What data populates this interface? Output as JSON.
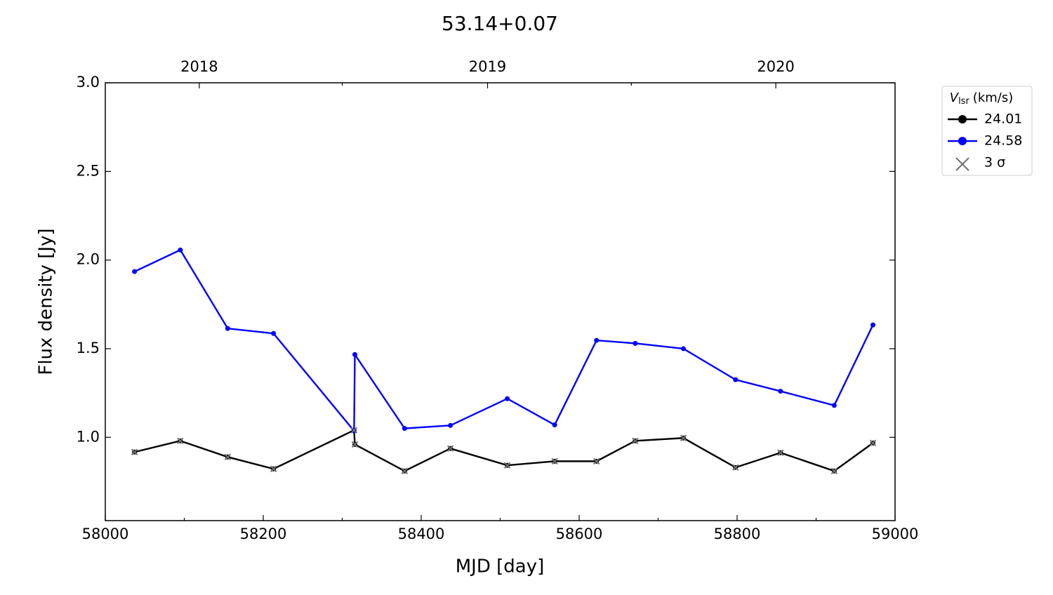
{
  "chart_data": {
    "type": "line",
    "title": "53.14+0.07",
    "xlabel": "MJD [day]",
    "ylabel": "Flux density [Jy]",
    "legend_title": {
      "symbol": "V",
      "subscript": "lsr",
      "unit": "(km/s)"
    },
    "legend_position": "outside upper right",
    "x": [
      58037,
      58095,
      58155,
      58213,
      58315,
      58316,
      58379,
      58437,
      58509,
      58569,
      58622,
      58671,
      58732,
      58798,
      58855,
      58923,
      58972
    ],
    "series": [
      {
        "name": "24.01",
        "color": "#000000",
        "marker": "circle",
        "line": true,
        "values": [
          0.917,
          0.98,
          0.889,
          0.822,
          1.04,
          0.96,
          0.81,
          0.937,
          0.842,
          0.865,
          0.865,
          0.98,
          0.996,
          0.83,
          0.913,
          0.81,
          0.968
        ]
      },
      {
        "name": "24.58",
        "color": "#0000ff",
        "marker": "circle",
        "line": true,
        "values": [
          1.935,
          2.057,
          1.614,
          1.586,
          1.036,
          1.467,
          1.05,
          1.067,
          1.218,
          1.07,
          1.547,
          1.53,
          1.5,
          1.325,
          1.26,
          1.18,
          1.634
        ]
      },
      {
        "name": "3 σ",
        "color": "#707070",
        "marker": "x",
        "line": false,
        "values": [
          0.917,
          0.98,
          0.889,
          0.822,
          1.04,
          0.96,
          0.81,
          0.937,
          0.842,
          0.865,
          0.865,
          0.98,
          0.996,
          0.83,
          0.913,
          0.81,
          0.968
        ]
      }
    ],
    "xlim": [
      58000,
      59000
    ],
    "xticks": [
      58000,
      58200,
      58400,
      58600,
      58800,
      59000
    ],
    "xminorticks": [
      58100,
      58300,
      58500,
      58700,
      58900
    ],
    "ylim": [
      0.53,
      3.0
    ],
    "yticks": [
      {
        "value": 1.0,
        "label": "1.0"
      },
      {
        "value": 1.5,
        "label": "1.5"
      },
      {
        "value": 2.0,
        "label": "2.0"
      },
      {
        "value": 2.5,
        "label": "2.5"
      },
      {
        "value": 3.0,
        "label": "3.0"
      }
    ],
    "x2ticks": [
      {
        "value": 58119,
        "label": "2018"
      },
      {
        "value": 58484,
        "label": "2019"
      },
      {
        "value": 58849,
        "label": "2020"
      }
    ],
    "x2minorticks": [
      58300,
      58666
    ]
  }
}
